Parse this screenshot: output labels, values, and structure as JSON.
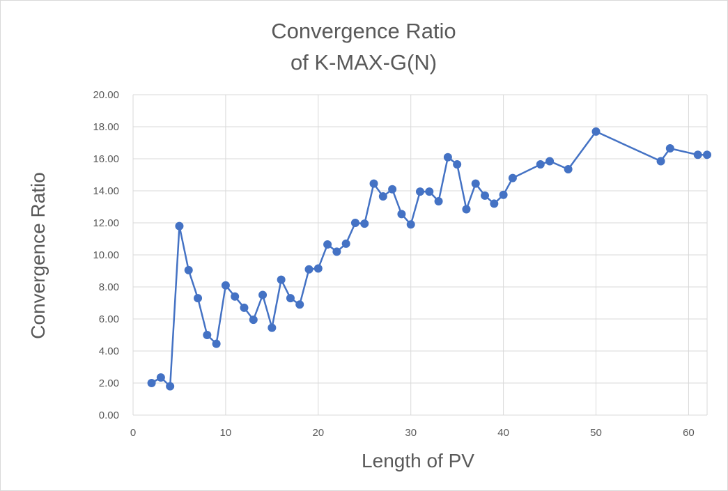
{
  "chart_data": {
    "type": "line",
    "title": [
      "Convergence Ratio",
      "of K-MAX-G(N)"
    ],
    "xlabel": "Length of PV",
    "ylabel": "Convergence Ratio",
    "xlim": [
      0,
      62
    ],
    "ylim": [
      0,
      20
    ],
    "xticks": [
      0,
      10,
      20,
      30,
      40,
      50,
      60
    ],
    "yticks": [
      "0.00",
      "2.00",
      "4.00",
      "6.00",
      "8.00",
      "10.00",
      "12.00",
      "14.00",
      "16.00",
      "18.00",
      "20.00"
    ],
    "grid": true,
    "legend": "none",
    "series": [
      {
        "color": "#4472c4",
        "x": [
          2,
          3,
          4,
          5,
          6,
          7,
          8,
          9,
          10,
          11,
          12,
          13,
          14,
          15,
          16,
          17,
          18,
          19,
          20,
          21,
          22,
          23,
          24,
          25,
          26,
          27,
          28,
          29,
          30,
          31,
          32,
          33,
          34,
          35,
          36,
          37,
          38,
          39,
          40,
          41,
          44,
          45,
          47,
          50,
          57,
          58,
          61,
          62
        ],
        "y": [
          2.0,
          2.35,
          1.8,
          11.8,
          9.05,
          7.3,
          5.0,
          4.45,
          8.1,
          7.4,
          6.7,
          5.95,
          7.5,
          5.45,
          8.45,
          7.3,
          6.9,
          9.1,
          9.15,
          10.65,
          10.2,
          10.7,
          12.0,
          11.95,
          14.45,
          13.65,
          14.1,
          12.55,
          11.9,
          13.95,
          13.95,
          13.35,
          16.1,
          15.65,
          12.85,
          14.45,
          13.7,
          13.2,
          13.75,
          14.8,
          15.65,
          15.85,
          15.35,
          17.7,
          15.85,
          16.65,
          16.25,
          16.25
        ]
      }
    ]
  }
}
